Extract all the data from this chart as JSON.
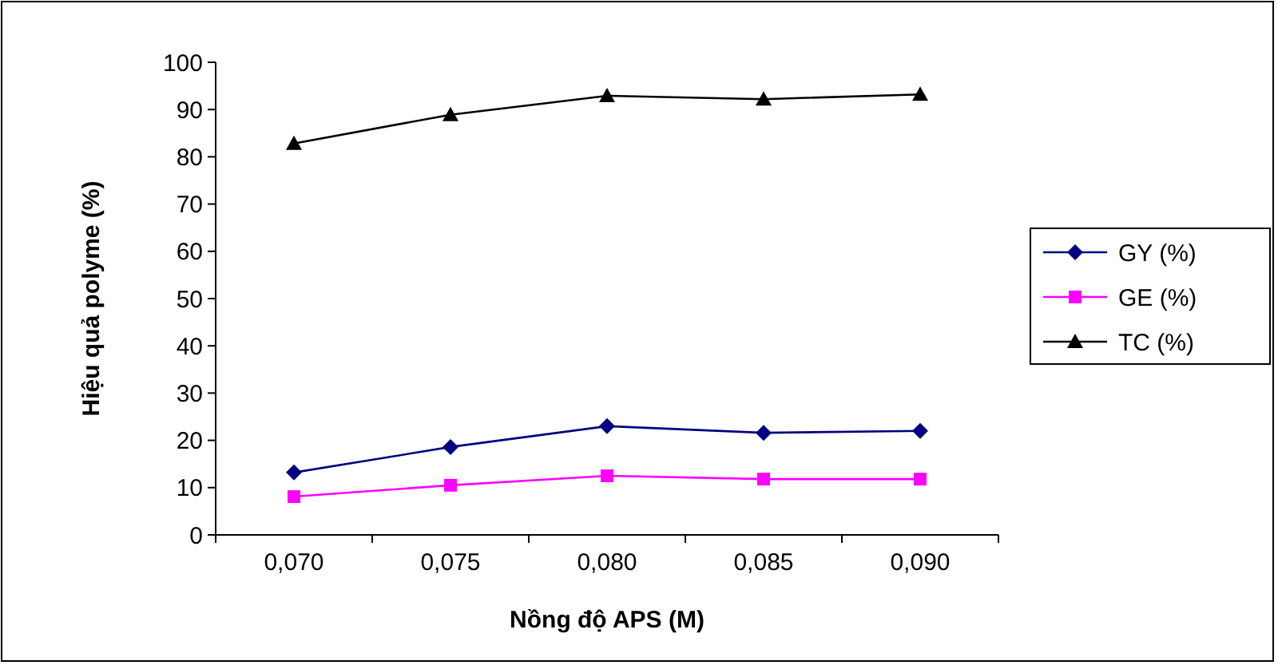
{
  "chart_data": {
    "type": "line",
    "xlabel": "Nồng độ APS (M)",
    "ylabel": "Hiệu quả polyme (%)",
    "categories": [
      "0,070",
      "0,075",
      "0,080",
      "0,085",
      "0,090"
    ],
    "series": [
      {
        "name": "GY (%)",
        "color": "#000080",
        "marker": "diamond",
        "values": [
          13.2,
          18.6,
          23,
          21.6,
          22
        ]
      },
      {
        "name": "GE (%)",
        "color": "#ff00ff",
        "marker": "square",
        "values": [
          8.1,
          10.5,
          12.5,
          11.8,
          11.8
        ]
      },
      {
        "name": "TC (%)",
        "color": "#000000",
        "marker": "triangle",
        "values": [
          82.8,
          88.9,
          92.9,
          92.2,
          93.2
        ]
      }
    ],
    "ylim": [
      0,
      100
    ],
    "yticks": [
      0,
      10,
      20,
      30,
      40,
      50,
      60,
      70,
      80,
      90,
      100
    ],
    "grid": false,
    "legend": "right"
  }
}
